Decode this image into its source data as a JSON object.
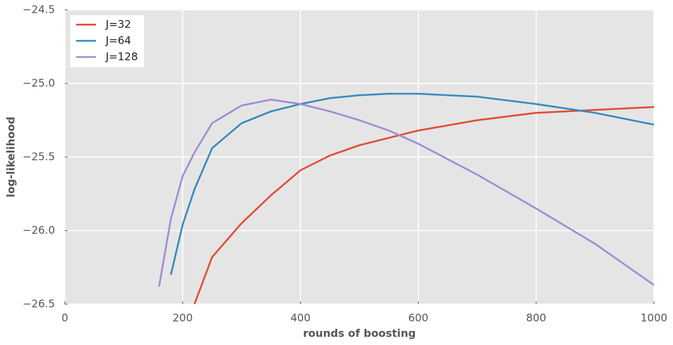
{
  "chart_data": {
    "type": "line",
    "xlabel": "rounds of boosting",
    "ylabel": "log-likelihood",
    "x": [
      160,
      180,
      200,
      220,
      250,
      300,
      350,
      400,
      450,
      500,
      550,
      600,
      700,
      800,
      900,
      1000
    ],
    "series": [
      {
        "name": "J=32",
        "color": "#E24A33",
        "values": [
          null,
          null,
          null,
          -26.5,
          -26.18,
          -25.95,
          -25.76,
          -25.59,
          -25.49,
          -25.42,
          -25.37,
          -25.32,
          -25.25,
          -25.2,
          -25.18,
          -25.16
        ]
      },
      {
        "name": "J=64",
        "color": "#348ABD",
        "values": [
          null,
          -26.3,
          -25.96,
          -25.72,
          -25.44,
          -25.27,
          -25.19,
          -25.14,
          -25.1,
          -25.08,
          -25.07,
          -25.07,
          -25.09,
          -25.14,
          -25.2,
          -25.28
        ]
      },
      {
        "name": "J=128",
        "color": "#988ED5",
        "values": [
          -26.38,
          -25.92,
          -25.63,
          -25.47,
          -25.27,
          -25.15,
          -25.11,
          -25.14,
          -25.19,
          -25.25,
          -25.32,
          -25.41,
          -25.62,
          -25.85,
          -26.09,
          -26.37
        ]
      }
    ],
    "xlim": [
      0,
      1000
    ],
    "xticks": [
      0,
      200,
      400,
      600,
      800,
      1000
    ],
    "ylim": [
      -26.5,
      -24.5
    ],
    "yticks": [
      {
        "value": -26.5,
        "label": "−26.5"
      },
      {
        "value": -26.0,
        "label": "−26.0"
      },
      {
        "value": -25.5,
        "label": "−25.5"
      },
      {
        "value": -25.0,
        "label": "−25.0"
      },
      {
        "value": -24.5,
        "label": "−24.5"
      }
    ],
    "grid": true,
    "legend": "upper left"
  }
}
